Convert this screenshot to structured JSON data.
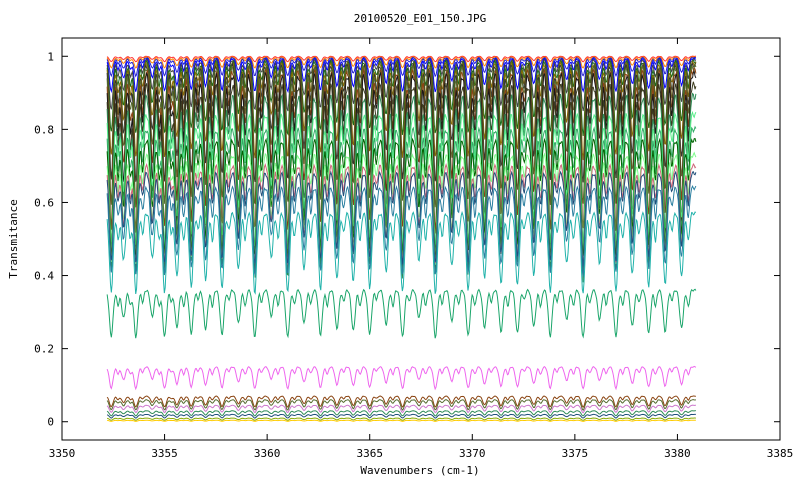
{
  "chart_data": {
    "type": "line",
    "title": "20100520_E01_150.JPG",
    "xlabel": "Wavenumbers (cm-1)",
    "ylabel": "Transmitance",
    "xlim": [
      3350,
      3385
    ],
    "ylim": [
      -0.05,
      1.05
    ],
    "x_range_data": [
      3352.2,
      3380.9
    ],
    "x_ticks": [
      "3350",
      "3355",
      "3360",
      "3365",
      "3370",
      "3375",
      "3380",
      "3385"
    ],
    "y_ticks": [
      "0",
      "0.2",
      "0.4",
      "0.6",
      "0.8",
      "1"
    ],
    "x_tick_values": [
      3350,
      3355,
      3360,
      3365,
      3370,
      3375,
      3380,
      3385
    ],
    "y_tick_values": [
      0,
      0.2,
      0.4,
      0.6,
      0.8,
      1
    ],
    "grid": false,
    "line_centers": [
      3352.4,
      3353.0,
      3353.6,
      3354.4,
      3355.0,
      3355.6,
      3356.3,
      3357.0,
      3357.8,
      3358.6,
      3359.4,
      3360.2,
      3361.0,
      3361.8,
      3362.6,
      3363.4,
      3364.2,
      3365.0,
      3365.8,
      3366.6,
      3367.4,
      3368.2,
      3369.0,
      3369.8,
      3370.6,
      3371.4,
      3372.2,
      3373.0,
      3373.8,
      3374.6,
      3375.4,
      3376.2,
      3377.0,
      3377.8,
      3378.6,
      3379.4,
      3380.2
    ],
    "series": [
      {
        "baseline": 1.0,
        "depth": 0.015,
        "color": "#ff3333"
      },
      {
        "baseline": 0.998,
        "depth": 0.03,
        "color": "#ff8800"
      },
      {
        "baseline": 0.996,
        "depth": 0.05,
        "color": "#2222cc"
      },
      {
        "baseline": 0.993,
        "depth": 0.09,
        "color": "#0000ff"
      },
      {
        "baseline": 0.99,
        "depth": 0.14,
        "color": "#444444"
      },
      {
        "baseline": 0.985,
        "depth": 0.2,
        "color": "#1a6b1a"
      },
      {
        "baseline": 0.98,
        "depth": 0.26,
        "color": "#8a6d00"
      },
      {
        "baseline": 0.975,
        "depth": 0.32,
        "color": "#333333"
      },
      {
        "baseline": 0.97,
        "depth": 0.38,
        "color": "#556b2f"
      },
      {
        "baseline": 0.96,
        "depth": 0.44,
        "color": "#8b4513"
      },
      {
        "baseline": 0.95,
        "depth": 0.5,
        "color": "#1a1a1a"
      },
      {
        "baseline": 0.92,
        "depth": 0.52,
        "color": "#3c3c1e"
      },
      {
        "baseline": 0.89,
        "depth": 0.5,
        "color": "#2e8b57"
      },
      {
        "baseline": 0.84,
        "depth": 0.36,
        "color": "#55ee88"
      },
      {
        "baseline": 0.8,
        "depth": 0.34,
        "color": "#33aa66"
      },
      {
        "baseline": 0.77,
        "depth": 0.32,
        "color": "#006400"
      },
      {
        "baseline": 0.73,
        "depth": 0.3,
        "color": "#7cfc8a"
      },
      {
        "baseline": 0.7,
        "depth": 0.27,
        "color": "#cc6677"
      },
      {
        "baseline": 0.68,
        "depth": 0.25,
        "color": "#1f4e79"
      },
      {
        "baseline": 0.64,
        "depth": 0.24,
        "color": "#2a7fa0"
      },
      {
        "baseline": 0.57,
        "depth": 0.22,
        "color": "#20b2aa"
      },
      {
        "baseline": 0.36,
        "depth": 0.13,
        "color": "#1aa56a"
      },
      {
        "baseline": 0.15,
        "depth": 0.06,
        "color": "#ee66ee"
      },
      {
        "baseline": 0.07,
        "depth": 0.03,
        "color": "#8b4513"
      },
      {
        "baseline": 0.06,
        "depth": 0.028,
        "color": "#556b2f"
      },
      {
        "baseline": 0.045,
        "depth": 0.02,
        "color": "#cc77cc"
      },
      {
        "baseline": 0.03,
        "depth": 0.014,
        "color": "#2e8b57"
      },
      {
        "baseline": 0.02,
        "depth": 0.01,
        "color": "#1f4e79"
      },
      {
        "baseline": 0.01,
        "depth": 0.006,
        "color": "#88aa00"
      },
      {
        "baseline": 0.004,
        "depth": 0.003,
        "color": "#ffcc00"
      }
    ]
  }
}
